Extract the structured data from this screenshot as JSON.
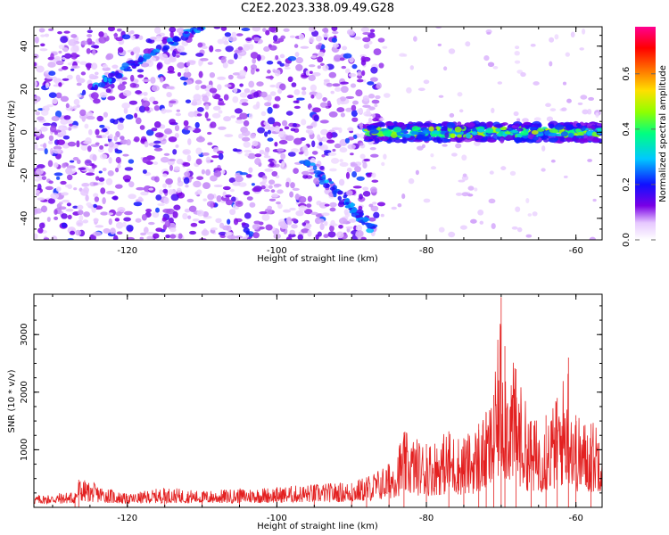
{
  "figure_title": "C2E2.2023.338.09.49.G28",
  "colors": {
    "snr_line": "#e32020",
    "axes": "#000000"
  },
  "chart_data": [
    {
      "type": "heatmap",
      "xlabel": "Height of straight line (km)",
      "ylabel": "Frequency (Hz)",
      "xlim": [
        -132.5,
        -56.5
      ],
      "ylim": [
        -50,
        49
      ],
      "xticks": [
        -120,
        -100,
        -80,
        -60
      ],
      "yticks": [
        -40,
        -20,
        0,
        20,
        40
      ],
      "grid": false,
      "colorbar": {
        "label": "Normalized spectral amplitude",
        "range": [
          0,
          0.77
        ],
        "ticks": [
          0.0,
          0.2,
          0.4,
          0.6
        ],
        "colormap": "rainbow (white-violet-blue-cyan-green-yellow-red-magenta)"
      },
      "features": [
        {
          "name": "noise field",
          "x_range": [
            -132.5,
            -86
          ],
          "y_range": [
            -50,
            49
          ]
        },
        {
          "name": "horizontal band",
          "x_range": [
            -88,
            -56.5
          ],
          "y_center": 0,
          "y_halfwidth": 4
        },
        {
          "name": "diagonal streak",
          "from": [
            -96,
            -14
          ],
          "to": [
            -87,
            -46
          ]
        },
        {
          "name": "diagonal streak",
          "from": [
            -125,
            20
          ],
          "to": [
            -110,
            50
          ]
        }
      ]
    },
    {
      "type": "line",
      "xlabel": "Height of straight line (km)",
      "ylabel": "SNR (10 * v/v)",
      "xlim": [
        -132.5,
        -56.5
      ],
      "ylim": [
        0,
        3700
      ],
      "xticks": [
        -120,
        -100,
        -80,
        -60
      ],
      "yticks": [
        1000,
        2000,
        3000
      ],
      "grid": false,
      "series": [
        {
          "color": "#e32020",
          "points": [
            [
              -132.5,
              180
            ],
            [
              -127,
              250
            ],
            [
              -126.5,
              480
            ],
            [
              -120,
              200
            ],
            [
              -115,
              320
            ],
            [
              -110,
              260
            ],
            [
              -105,
              300
            ],
            [
              -100,
              330
            ],
            [
              -95,
              380
            ],
            [
              -90,
              420
            ],
            [
              -88,
              520
            ],
            [
              -85,
              750
            ],
            [
              -83,
              1300
            ],
            [
              -80,
              1100
            ],
            [
              -77,
              1320
            ],
            [
              -75,
              1200
            ],
            [
              -73,
              1450
            ],
            [
              -72,
              1640
            ],
            [
              -71,
              1950
            ],
            [
              -70,
              3650
            ],
            [
              -69.5,
              2800
            ],
            [
              -68,
              2400
            ],
            [
              -66,
              1500
            ],
            [
              -64,
              1600
            ],
            [
              -62.5,
              1900
            ],
            [
              -61,
              2600
            ],
            [
              -60,
              1600
            ],
            [
              -58,
              1450
            ],
            [
              -56.5,
              1700
            ]
          ]
        }
      ]
    }
  ]
}
